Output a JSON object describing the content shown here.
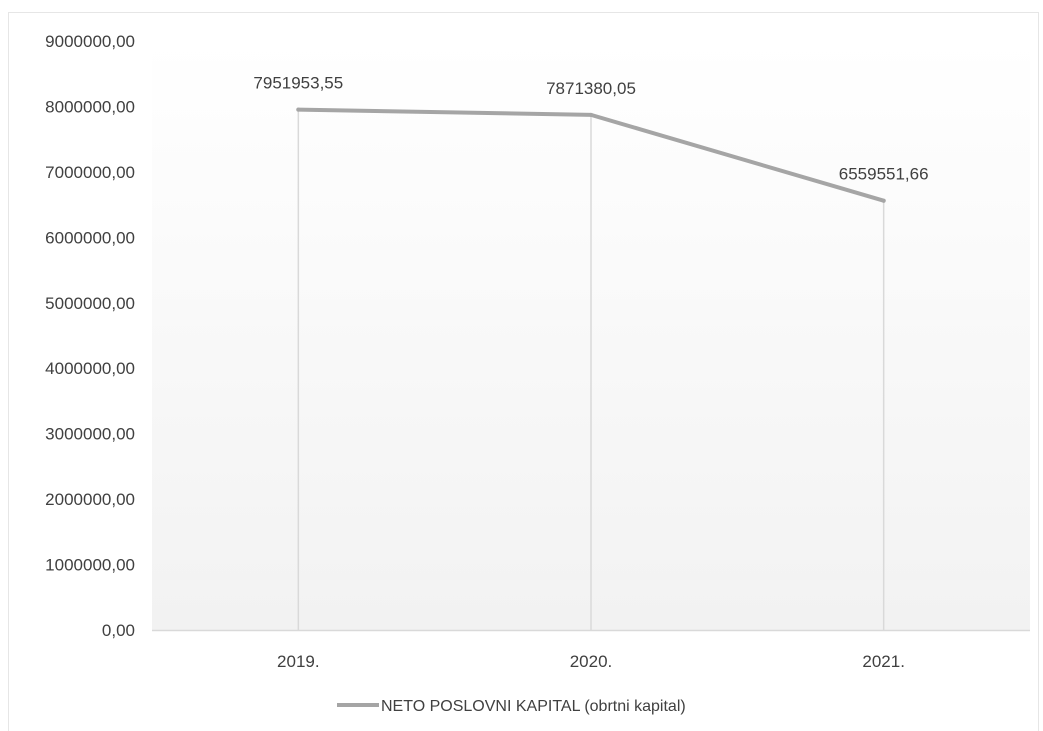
{
  "chart_data": {
    "type": "line",
    "title": "",
    "xlabel": "",
    "ylabel": "",
    "categories": [
      "2019.",
      "2020.",
      "2021."
    ],
    "series": [
      {
        "name": "NETO POSLOVNI KAPITAL (obrtni kapital)",
        "values": [
          7951953.55,
          7871380.05,
          6559551.66
        ],
        "data_labels": [
          "7951953,55",
          "7871380,05",
          "6559551,66"
        ],
        "color": "#a5a5a5"
      }
    ],
    "ylim": [
      0,
      9000000
    ],
    "yticks": [
      0,
      1000000,
      2000000,
      3000000,
      4000000,
      5000000,
      6000000,
      7000000,
      8000000,
      9000000
    ],
    "ytick_labels": [
      "0,00",
      "1000000,00",
      "2000000,00",
      "3000000,00",
      "4000000,00",
      "5000000,00",
      "6000000,00",
      "7000000,00",
      "8000000,00",
      "9000000,00"
    ],
    "grid": false,
    "drop_lines": true,
    "legend_position": "bottom",
    "colors": {
      "series_line": "#a5a5a5",
      "axis": "#d9d9d9",
      "drop_line": "#d9d9d9",
      "text": "#404040",
      "plot_gradient_top": "#ffffff",
      "plot_gradient_bottom": "#f2f2f2"
    }
  }
}
